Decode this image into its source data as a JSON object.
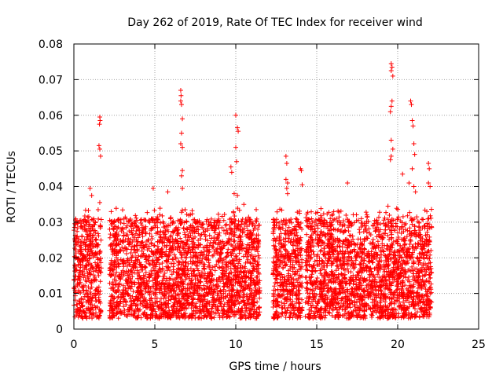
{
  "chart_data": {
    "type": "scatter",
    "title": "Day 262 of 2019, Rate Of TEC Index for receiver wind",
    "xlabel": "GPS time / hours",
    "ylabel": "ROTI / TECUs",
    "xlim": [
      0,
      25
    ],
    "ylim": [
      0,
      0.08
    ],
    "xticks": [
      0,
      5,
      10,
      15,
      20,
      25
    ],
    "xtick_labels": [
      "0",
      "5",
      "10",
      "15",
      "20",
      "25"
    ],
    "yticks": [
      0,
      0.01,
      0.02,
      0.03,
      0.04,
      0.05,
      0.06,
      0.07,
      0.08
    ],
    "ytick_labels": [
      "0",
      "0.01",
      "0.02",
      "0.03",
      "0.04",
      "0.05",
      "0.06",
      "0.07",
      "0.08"
    ],
    "grid": true,
    "marker": "+",
    "color": "#ff0000",
    "data_coverage_hours": [
      [
        0.0,
        1.7
      ],
      [
        2.2,
        11.5
      ],
      [
        12.3,
        14.1
      ],
      [
        14.3,
        22.1
      ]
    ],
    "typical_range": [
      0.003,
      0.025
    ],
    "outliers": [
      {
        "x": 1.0,
        "y": 0.0395
      },
      {
        "x": 1.1,
        "y": 0.0375
      },
      {
        "x": 1.6,
        "y": 0.0595
      },
      {
        "x": 1.62,
        "y": 0.0585
      },
      {
        "x": 1.58,
        "y": 0.0575
      },
      {
        "x": 1.55,
        "y": 0.0515
      },
      {
        "x": 1.6,
        "y": 0.0505
      },
      {
        "x": 1.65,
        "y": 0.0485
      },
      {
        "x": 1.6,
        "y": 0.0355
      },
      {
        "x": 1.5,
        "y": 0.0335
      },
      {
        "x": 4.9,
        "y": 0.0395
      },
      {
        "x": 5.8,
        "y": 0.0385
      },
      {
        "x": 6.6,
        "y": 0.067
      },
      {
        "x": 6.62,
        "y": 0.0655
      },
      {
        "x": 6.6,
        "y": 0.064
      },
      {
        "x": 6.65,
        "y": 0.063
      },
      {
        "x": 6.7,
        "y": 0.059
      },
      {
        "x": 6.65,
        "y": 0.055
      },
      {
        "x": 6.6,
        "y": 0.052
      },
      {
        "x": 6.7,
        "y": 0.051
      },
      {
        "x": 6.7,
        "y": 0.0445
      },
      {
        "x": 6.65,
        "y": 0.043
      },
      {
        "x": 6.7,
        "y": 0.0395
      },
      {
        "x": 9.7,
        "y": 0.0455
      },
      {
        "x": 9.75,
        "y": 0.044
      },
      {
        "x": 9.9,
        "y": 0.038
      },
      {
        "x": 10.0,
        "y": 0.06
      },
      {
        "x": 10.1,
        "y": 0.0565
      },
      {
        "x": 10.15,
        "y": 0.0555
      },
      {
        "x": 10.0,
        "y": 0.051
      },
      {
        "x": 10.05,
        "y": 0.047
      },
      {
        "x": 10.1,
        "y": 0.0375
      },
      {
        "x": 10.5,
        "y": 0.035
      },
      {
        "x": 13.1,
        "y": 0.0485
      },
      {
        "x": 13.15,
        "y": 0.0465
      },
      {
        "x": 13.1,
        "y": 0.042
      },
      {
        "x": 13.2,
        "y": 0.041
      },
      {
        "x": 13.15,
        "y": 0.0395
      },
      {
        "x": 13.2,
        "y": 0.038
      },
      {
        "x": 14.0,
        "y": 0.045
      },
      {
        "x": 14.05,
        "y": 0.0445
      },
      {
        "x": 14.1,
        "y": 0.0405
      },
      {
        "x": 16.9,
        "y": 0.041
      },
      {
        "x": 19.6,
        "y": 0.0745
      },
      {
        "x": 19.65,
        "y": 0.0735
      },
      {
        "x": 19.6,
        "y": 0.0725
      },
      {
        "x": 19.7,
        "y": 0.071
      },
      {
        "x": 19.65,
        "y": 0.064
      },
      {
        "x": 19.6,
        "y": 0.0625
      },
      {
        "x": 19.55,
        "y": 0.061
      },
      {
        "x": 19.6,
        "y": 0.053
      },
      {
        "x": 19.7,
        "y": 0.0505
      },
      {
        "x": 19.6,
        "y": 0.0485
      },
      {
        "x": 19.55,
        "y": 0.0475
      },
      {
        "x": 19.4,
        "y": 0.0345
      },
      {
        "x": 20.3,
        "y": 0.0435
      },
      {
        "x": 20.8,
        "y": 0.064
      },
      {
        "x": 20.85,
        "y": 0.063
      },
      {
        "x": 20.9,
        "y": 0.0585
      },
      {
        "x": 20.95,
        "y": 0.057
      },
      {
        "x": 21.0,
        "y": 0.052
      },
      {
        "x": 21.05,
        "y": 0.049
      },
      {
        "x": 20.9,
        "y": 0.045
      },
      {
        "x": 21.0,
        "y": 0.04
      },
      {
        "x": 21.1,
        "y": 0.0385
      },
      {
        "x": 20.7,
        "y": 0.041
      },
      {
        "x": 21.9,
        "y": 0.0465
      },
      {
        "x": 21.95,
        "y": 0.045
      },
      {
        "x": 21.9,
        "y": 0.041
      },
      {
        "x": 22.0,
        "y": 0.04
      },
      {
        "x": 21.8,
        "y": 0.033
      }
    ]
  }
}
